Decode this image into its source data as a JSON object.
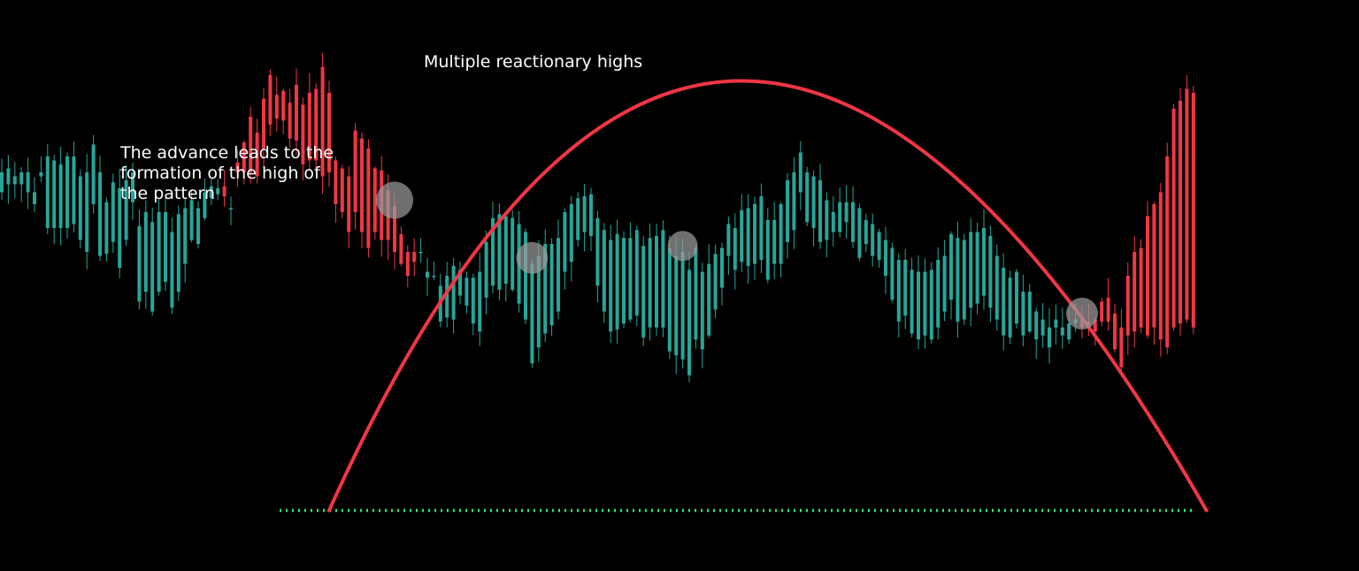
{
  "colors": {
    "background": "#000000",
    "up_candle": "#26a69a",
    "down_candle": "#f23645",
    "arc": "#f23645",
    "support_line": "#2ee76a",
    "highlight_circle": "#9a9a9a",
    "annotation_text": "#ffffff"
  },
  "annotations": [
    {
      "id": "advance",
      "lines": [
        "The advance leads to the",
        "formation of the high of",
        "the pattern"
      ]
    },
    {
      "id": "highs",
      "lines": [
        "Multiple reactionary highs"
      ]
    }
  ],
  "chart_data": {
    "type": "candlestick",
    "pattern": "rounding top",
    "price_scale": "relative (no axis printed)",
    "support_level": 300,
    "arc": {
      "start": [
        50,
        300
      ],
      "peak": [
        113,
        516
      ],
      "end": [
        184,
        300
      ]
    },
    "reactionary_highs": [
      60,
      81,
      104,
      165
    ],
    "candles": [
      [
        10,
        470
      ],
      [
        8,
        472
      ],
      [
        4,
        468
      ],
      [
        6,
        470
      ],
      [
        10,
        470
      ],
      [
        6,
        460
      ],
      [
        2,
        470
      ],
      [
        36,
        478
      ],
      [
        34,
        476
      ],
      [
        32,
        474
      ],
      [
        36,
        478
      ],
      [
        34,
        478
      ],
      [
        32,
        468
      ],
      [
        40,
        470
      ],
      [
        30,
        484
      ],
      [
        42,
        470
      ],
      [
        26,
        455
      ],
      [
        30,
        465
      ],
      [
        40,
        462
      ],
      [
        30,
        466
      ],
      [
        15,
        470
      ],
      [
        38,
        443
      ],
      [
        40,
        450
      ],
      [
        45,
        445
      ],
      [
        40,
        450
      ],
      [
        35,
        450
      ],
      [
        38,
        440
      ],
      [
        39,
        449
      ],
      [
        28,
        452
      ],
      [
        20,
        456
      ],
      [
        18,
        452
      ],
      [
        13,
        460
      ],
      [
        6,
        463
      ],
      [
        3,
        462
      ],
      [
        -5,
        458
      ],
      [
        0,
        452
      ],
      [
        -5,
        470
      ],
      [
        -15,
        470
      ],
      [
        -28,
        470
      ],
      [
        -22,
        468
      ],
      [
        -25,
        482
      ],
      [
        -25,
        494
      ],
      [
        -12,
        497
      ],
      [
        -15,
        496
      ],
      [
        -18,
        487
      ],
      [
        -28,
        486
      ],
      [
        -30,
        474
      ],
      [
        -34,
        476
      ],
      [
        -36,
        476
      ],
      [
        -55,
        468
      ],
      [
        -40,
        470
      ],
      [
        -22,
        454
      ],
      [
        -22,
        450
      ],
      [
        -28,
        440
      ],
      [
        -41,
        450
      ],
      [
        -47,
        440
      ],
      [
        -50,
        432
      ],
      [
        -32,
        440
      ],
      [
        -35,
        436
      ],
      [
        -25,
        436
      ],
      [
        -23,
        430
      ],
      [
        -15,
        424
      ],
      [
        -12,
        418
      ],
      [
        -5,
        425
      ],
      [
        0,
        430
      ],
      [
        3,
        420
      ],
      [
        0,
        418
      ],
      [
        18,
        413
      ],
      [
        21,
        418
      ],
      [
        27,
        423
      ],
      [
        13,
        421
      ],
      [
        14,
        417
      ],
      [
        23,
        417
      ],
      [
        30,
        420
      ],
      [
        28,
        435
      ],
      [
        34,
        447
      ],
      [
        38,
        449
      ],
      [
        34,
        448
      ],
      [
        36,
        447
      ],
      [
        40,
        444
      ],
      [
        44,
        440
      ],
      [
        50,
        424
      ],
      [
        46,
        428
      ],
      [
        45,
        434
      ],
      [
        41,
        434
      ],
      [
        37,
        437
      ],
      [
        30,
        450
      ],
      [
        29,
        454
      ],
      [
        21,
        457
      ],
      [
        18,
        458
      ],
      [
        21,
        459
      ],
      [
        34,
        447
      ],
      [
        41,
        441
      ],
      [
        46,
        436
      ],
      [
        48,
        439
      ],
      [
        43,
        437
      ],
      [
        41,
        437
      ],
      [
        43,
        441
      ],
      [
        46,
        433
      ],
      [
        45,
        437
      ],
      [
        46,
        438
      ],
      [
        49,
        441
      ],
      [
        52,
        432
      ],
      [
        50,
        428
      ],
      [
        54,
        430
      ],
      [
        53,
        421
      ],
      [
        46,
        432
      ],
      [
        39,
        420
      ],
      [
        36,
        424
      ],
      [
        28,
        429
      ],
      [
        20,
        432
      ],
      [
        16,
        444
      ],
      [
        21,
        442
      ],
      [
        26,
        451
      ],
      [
        29,
        452
      ],
      [
        30,
        454
      ],
      [
        32,
        458
      ],
      [
        30,
        446
      ],
      [
        22,
        446
      ],
      [
        30,
        454
      ],
      [
        31,
        466
      ],
      [
        29,
        470
      ],
      [
        20,
        480
      ],
      [
        25,
        470
      ],
      [
        26,
        468
      ],
      [
        31,
        466
      ],
      [
        20,
        456
      ],
      [
        10,
        450
      ],
      [
        15,
        455
      ],
      [
        10,
        455
      ],
      [
        20,
        455
      ],
      [
        25,
        452
      ],
      [
        12,
        446
      ],
      [
        16,
        444
      ],
      [
        14,
        440
      ],
      [
        18,
        436
      ],
      [
        26,
        432
      ],
      [
        31,
        426
      ],
      [
        28,
        426
      ],
      [
        32,
        421
      ],
      [
        34,
        420
      ],
      [
        32,
        420
      ],
      [
        35,
        421
      ],
      [
        34,
        426
      ],
      [
        28,
        428
      ],
      [
        33,
        439
      ],
      [
        42,
        437
      ],
      [
        40,
        436
      ],
      [
        38,
        440
      ],
      [
        36,
        440
      ],
      [
        34,
        442
      ],
      [
        36,
        438
      ],
      [
        32,
        428
      ],
      [
        34,
        422
      ],
      [
        30,
        417
      ],
      [
        26,
        420
      ],
      [
        22,
        410
      ],
      [
        20,
        410
      ],
      [
        14,
        400
      ],
      [
        8,
        396
      ],
      [
        10,
        392
      ],
      [
        4,
        396
      ],
      [
        4,
        392
      ],
      [
        8,
        394
      ],
      [
        2,
        396
      ],
      [
        -4,
        392
      ],
      [
        -2,
        393
      ],
      [
        -6,
        390
      ],
      [
        -10,
        395
      ],
      [
        -12,
        395
      ],
      [
        -18,
        381
      ],
      [
        -20,
        372
      ],
      [
        -30,
        388
      ],
      [
        -40,
        390
      ],
      [
        -40,
        392
      ],
      [
        -60,
        388
      ],
      [
        -62,
        392
      ],
      [
        -74,
        386
      ],
      [
        -96,
        382
      ],
      [
        -110,
        392
      ],
      [
        -112,
        394
      ],
      [
        -116,
        396
      ],
      [
        -118,
        392
      ]
    ]
  }
}
